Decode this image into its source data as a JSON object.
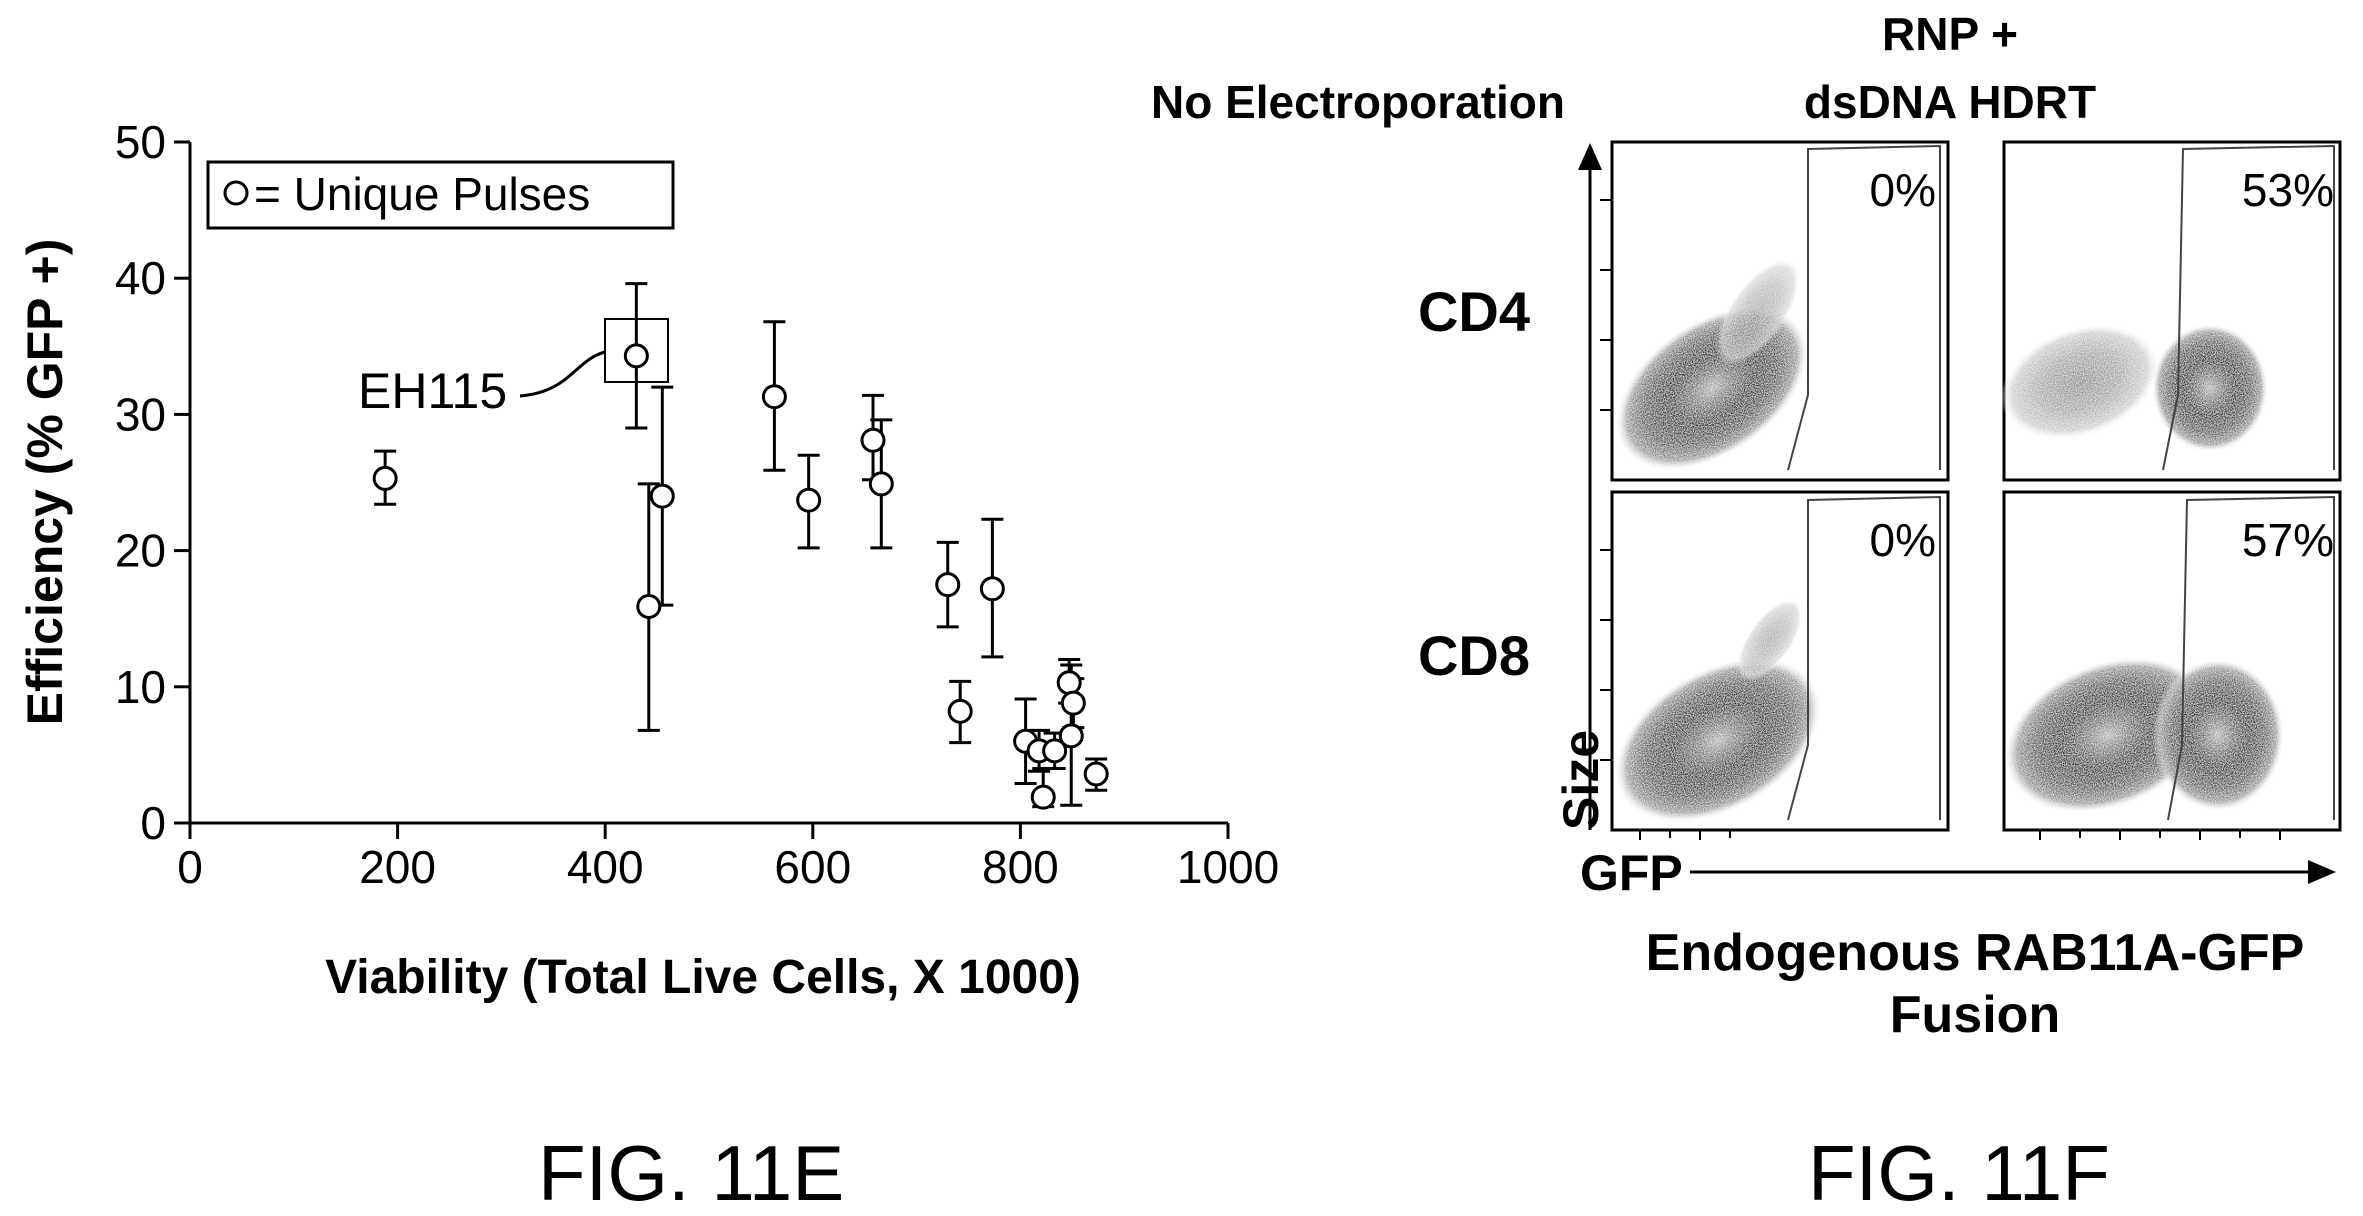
{
  "figure_e": {
    "caption": "FIG. 11E",
    "legend": "= Unique Pulses",
    "annotation": "EH115",
    "xlabel": "Viability (Total Live Cells, X 1000)",
    "ylabel": "Efficiency (% GFP +)"
  },
  "figure_f": {
    "caption": "FIG. 11F",
    "columns": [
      "No Electroporation",
      "RNP +",
      "dsDNA HDRT"
    ],
    "rows": [
      "CD4",
      "CD8"
    ],
    "yaxis_label": "Size",
    "xaxis_label": "GFP",
    "xlabel_line1": "Endogenous RAB11A-GFP",
    "xlabel_line2": "Fusion",
    "percentages": [
      "0%",
      "53%",
      "0%",
      "57%"
    ]
  },
  "chart_data": [
    {
      "type": "scatter",
      "title": "",
      "xlabel": "Viability (Total Live Cells, X 1000)",
      "ylabel": "Efficiency (% GFP +)",
      "xlim": [
        0,
        1000
      ],
      "ylim": [
        0,
        50
      ],
      "xticks": [
        0,
        200,
        400,
        600,
        800,
        1000
      ],
      "yticks": [
        0,
        10,
        20,
        30,
        40,
        50
      ],
      "legend": "= Unique Pulses",
      "grid": false,
      "points": [
        {
          "x": 188,
          "y": 25.3,
          "lo": 23.4,
          "hi": 27.3
        },
        {
          "x": 430,
          "y": 34.3,
          "lo": 29.0,
          "hi": 39.6
        },
        {
          "x": 442,
          "y": 15.9,
          "lo": 6.8,
          "hi": 24.9
        },
        {
          "x": 455,
          "y": 24.0,
          "lo": 16.0,
          "hi": 32.0
        },
        {
          "x": 563,
          "y": 31.3,
          "lo": 25.9,
          "hi": 36.8
        },
        {
          "x": 596,
          "y": 23.7,
          "lo": 20.2,
          "hi": 27.0
        },
        {
          "x": 658,
          "y": 28.1,
          "lo": 25.2,
          "hi": 31.4
        },
        {
          "x": 666,
          "y": 24.9,
          "lo": 20.2,
          "hi": 29.6
        },
        {
          "x": 730,
          "y": 17.5,
          "lo": 14.4,
          "hi": 20.6
        },
        {
          "x": 742,
          "y": 8.2,
          "lo": 5.9,
          "hi": 10.4
        },
        {
          "x": 773,
          "y": 17.2,
          "lo": 12.2,
          "hi": 22.3
        },
        {
          "x": 805,
          "y": 6.0,
          "lo": 2.9,
          "hi": 9.1
        },
        {
          "x": 818,
          "y": 5.3,
          "lo": 3.8,
          "hi": 6.8
        },
        {
          "x": 822,
          "y": 1.9,
          "lo": 1.2,
          "hi": 4.0
        },
        {
          "x": 833,
          "y": 5.3,
          "lo": 4.0,
          "hi": 6.6
        },
        {
          "x": 847,
          "y": 10.3,
          "lo": 8.8,
          "hi": 12.0
        },
        {
          "x": 849,
          "y": 6.4,
          "lo": 1.3,
          "hi": 11.6
        },
        {
          "x": 851,
          "y": 8.8,
          "lo": 7.0,
          "hi": 10.6
        },
        {
          "x": 873,
          "y": 3.6,
          "lo": 2.4,
          "hi": 4.7
        }
      ],
      "highlighted_point": {
        "x": 430,
        "y": 34.3,
        "label": "EH115"
      }
    },
    {
      "type": "heatmap",
      "title": "",
      "xlabel": "GFP",
      "ylabel": "Size",
      "panels": [
        {
          "row": "CD4",
          "column": "No Electroporation",
          "gfp_positive_percent": 0
        },
        {
          "row": "CD4",
          "column": "RNP + dsDNA HDRT",
          "gfp_positive_percent": 53
        },
        {
          "row": "CD8",
          "column": "No Electroporation",
          "gfp_positive_percent": 0
        },
        {
          "row": "CD8",
          "column": "RNP + dsDNA HDRT",
          "gfp_positive_percent": 57
        }
      ]
    }
  ]
}
